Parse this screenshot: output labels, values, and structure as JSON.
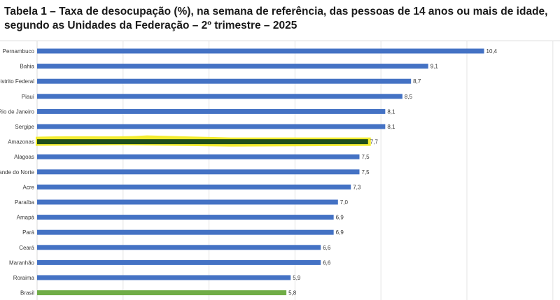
{
  "title": "Tabela 1 – Taxa de desocupação (%), na semana de referência, das pessoas de 14 anos ou mais de idade, segundo as Unidades da Federação – 2º trimestre – 2025",
  "colors": {
    "bar": "#4472C4",
    "bar_brasil": "#70AD47",
    "highlight": "#F2EA1A",
    "highlight_bar": "#1F4F1C"
  },
  "chart_data": {
    "type": "bar",
    "orientation": "horizontal",
    "title": "Tabela 1 – Taxa de desocupação (%), na semana de referência, das pessoas de 14 anos ou mais de idade, segundo as Unidades da Federação – 2º trimestre – 2025",
    "categories": [
      "Pernambuco",
      "Bahia",
      "Distrito Federal",
      "Piauí",
      "Rio de Janeiro",
      "Sergipe",
      "Amazonas",
      "Alagoas",
      "Rio Grande do Norte",
      "Acre",
      "Paraíba",
      "Amapá",
      "Pará",
      "Ceará",
      "Maranhão",
      "Roraima",
      "Brasil"
    ],
    "values": [
      10.4,
      9.1,
      8.7,
      8.5,
      8.1,
      8.1,
      7.7,
      7.5,
      7.5,
      7.3,
      7.0,
      6.9,
      6.9,
      6.6,
      6.6,
      5.9,
      5.8
    ],
    "value_labels": [
      "10,4",
      "9,1",
      "8,7",
      "8,5",
      "8,1",
      "8,1",
      "7,7",
      "7,5",
      "7,5",
      "7,3",
      "7,0",
      "6,9",
      "6,9",
      "6,6",
      "6,6",
      "5,9",
      "5,8"
    ],
    "highlighted": "Amazonas",
    "grid": true,
    "legend": "none"
  }
}
